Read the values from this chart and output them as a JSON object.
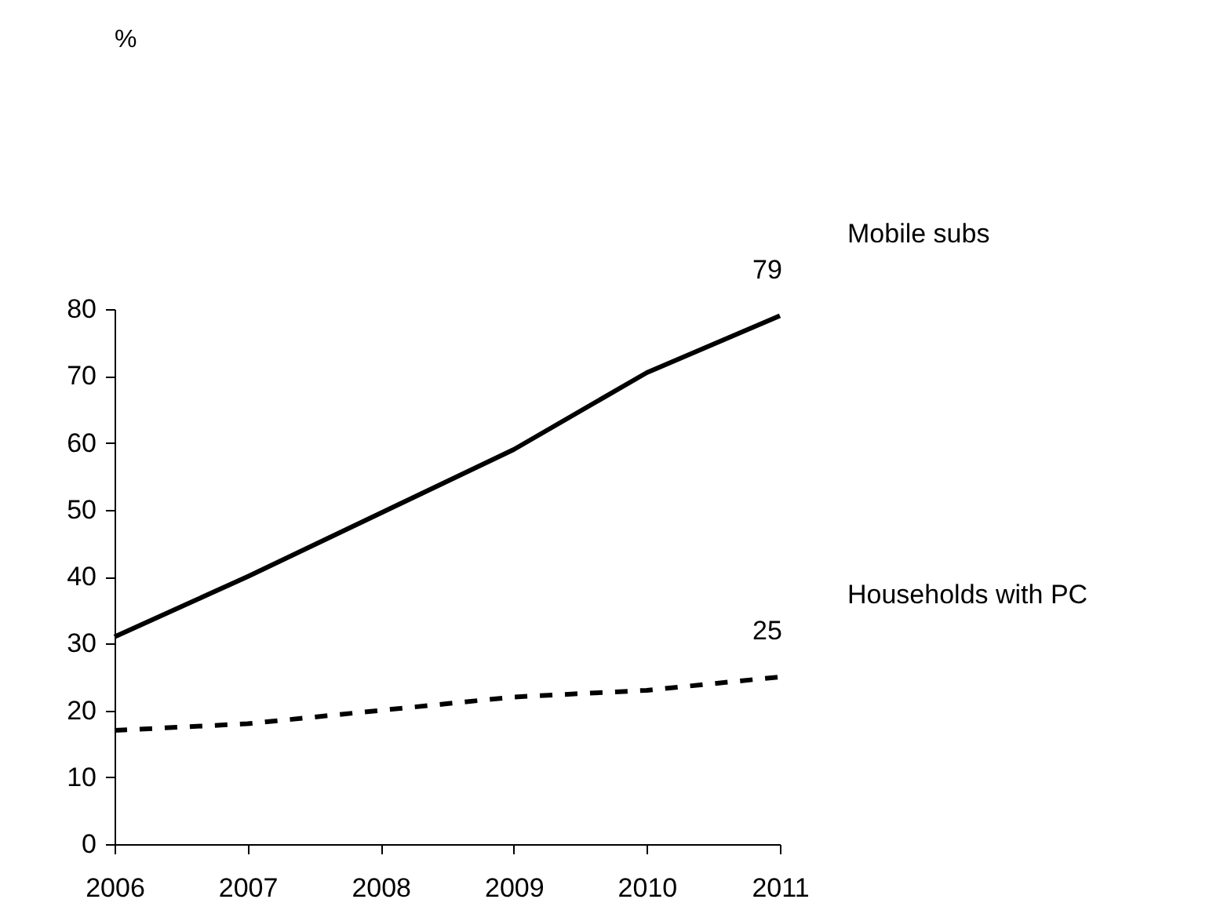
{
  "chart_data": {
    "type": "line",
    "annotations": [
      "%"
    ],
    "x": [
      2006,
      2007,
      2008,
      2009,
      2010,
      2011
    ],
    "series": [
      {
        "name": "Mobile subs",
        "color": "#000000",
        "line_style": "solid",
        "values": [
          31,
          40,
          49.5,
          59,
          70.5,
          79
        ],
        "value_labels": [
          null,
          null,
          null,
          null,
          null,
          "79"
        ]
      },
      {
        "name": "Households with PC",
        "color": "#000000",
        "line_style": "dashed",
        "values": [
          17,
          18,
          20,
          22,
          23,
          25
        ],
        "value_labels": [
          null,
          null,
          null,
          null,
          null,
          "25"
        ]
      }
    ],
    "xlim": [
      2006,
      2011
    ],
    "xticks": [
      2006,
      2007,
      2008,
      2009,
      2010,
      2011
    ],
    "ylim": [
      0,
      80
    ],
    "yticks": [
      0,
      10,
      20,
      30,
      40,
      50,
      60,
      70,
      80
    ],
    "grid": false,
    "legend": false,
    "marker": "none"
  }
}
